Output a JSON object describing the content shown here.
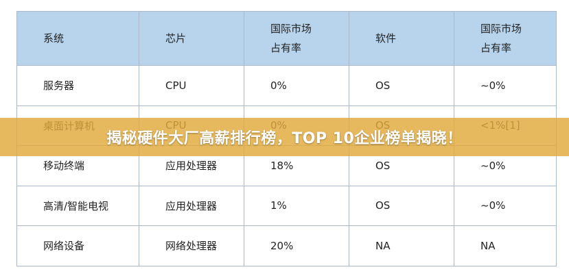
{
  "table": {
    "headers": [
      {
        "line1": "系统",
        "line2": ""
      },
      {
        "line1": "芯片",
        "line2": ""
      },
      {
        "line1": "国际市场",
        "line2": "占有率"
      },
      {
        "line1": "软件",
        "line2": ""
      },
      {
        "line1": "国际市场",
        "line2": "占有率"
      }
    ],
    "rows": [
      [
        "服务器",
        "CPU",
        "0%",
        "OS",
        "~0%"
      ],
      [
        "桌面计算机",
        "CPU",
        "0%",
        "OS",
        "<1%[1]"
      ],
      [
        "移动终端",
        "应用处理器",
        "18%",
        "OS",
        "~0%"
      ],
      [
        "高清/智能电视",
        "应用处理器",
        "1%",
        "OS",
        "~0%"
      ],
      [
        "网络设备",
        "网络处理器",
        "20%",
        "NA",
        "NA"
      ]
    ]
  },
  "banner": {
    "text": "揭秘硬件大厂高薪排行榜，TOP 10企业榜单揭晓！",
    "color": "#e0aa3c"
  },
  "colors": {
    "header_bg": "#b8d4ec",
    "border": "#a9b7c6"
  }
}
